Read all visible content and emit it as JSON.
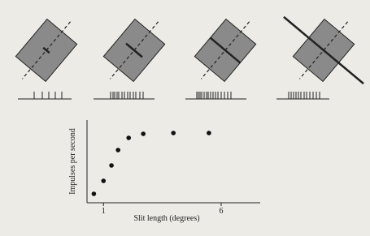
{
  "chart_data": {
    "type": "scatter",
    "x_label": "Slit length (degrees)",
    "y_label": "Impulses per second",
    "x": [
      0.59,
      1.0,
      1.34,
      1.62,
      2.07,
      2.69,
      3.97,
      5.48
    ],
    "values": [
      1.1,
      2.7,
      4.6,
      6.5,
      8.0,
      8.5,
      8.6,
      8.6
    ],
    "color": "#111111",
    "xlim": [
      0.3,
      7.66
    ],
    "xticks": [
      1,
      6
    ],
    "ylim": [
      0,
      10.2
    ],
    "yticks": []
  }
}
